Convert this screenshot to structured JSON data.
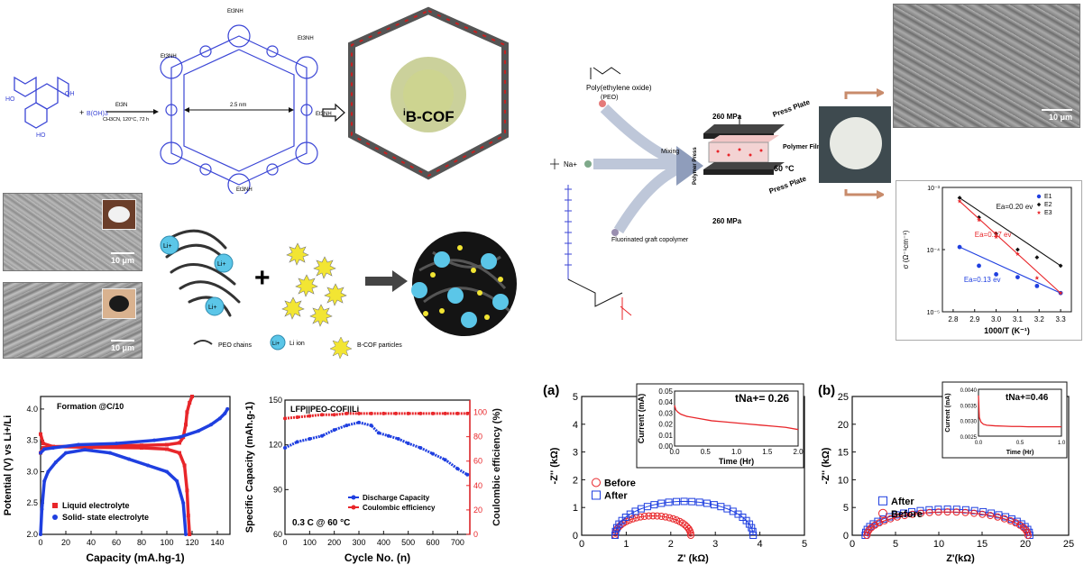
{
  "cof_scheme": {
    "reagent_top": "Et3N",
    "conditions": "CH3CN, 120°C, 72 h",
    "boronic_acid": "B(OH)3",
    "pore_size": "2.5 nm",
    "cation_label": "Et3NH",
    "cof_name": "B-COF",
    "cof_superscript": "i"
  },
  "sem_images": {
    "scale_top_right": "10 μm",
    "scale_left_top": "10 μm",
    "scale_left_bottom": "10 μm"
  },
  "legend_scheme": {
    "peo": "PEO chains",
    "li_ion": "Li ion",
    "cof_particles": "B-COF particles",
    "li_symbol": "Li+"
  },
  "fabrication": {
    "peo_name": "Poly(ethylene oxide)",
    "peo_abbr": "(PEO)",
    "graft_name": "Fluorinated graft copolymer",
    "mixing": "Mixing",
    "pressure_top": "260 MPa",
    "pressure_bottom": "260 MPa",
    "press_plate_top": "Press Plate",
    "press_plate_bottom": "Press Plate",
    "polymer_film": "Polymer Film",
    "temperature": "60 °C",
    "polymer_press": "Polymer Press",
    "sodium": "Na+"
  },
  "colors": {
    "red": "#e8262a",
    "blue": "#1f3fe0",
    "black": "#111111",
    "cof_blue": "#3b46d6",
    "li_blue": "#5bc6e8"
  },
  "chart_data": [
    {
      "id": "arrhenius",
      "type": "scatter",
      "xlabel": "1000/T (K⁻¹)",
      "ylabel": "σ (Ω⁻¹cm⁻¹)",
      "xlim": [
        2.75,
        3.35
      ],
      "ylog": true,
      "ylim": [
        1e-05,
        0.001
      ],
      "xticks": [
        2.8,
        2.9,
        3.0,
        3.1,
        3.2,
        3.3
      ],
      "yticks": [
        "10⁻⁵",
        "10⁻⁴",
        "10⁻³"
      ],
      "legend": "top-right",
      "series": [
        {
          "name": "E1",
          "marker": "circle",
          "color": "#1f3fe0",
          "x": [
            2.83,
            2.92,
            3.0,
            3.1,
            3.19,
            3.3
          ],
          "y": [
            0.00011,
            5.5e-05,
            4e-05,
            3.6e-05,
            2.6e-05,
            2e-05
          ]
        },
        {
          "name": "E2",
          "marker": "diamond",
          "color": "#111111",
          "x": [
            2.83,
            2.92,
            3.0,
            3.1,
            3.19,
            3.3
          ],
          "y": [
            0.00068,
            0.00033,
            0.00018,
            0.0001,
            7.5e-05,
            5.5e-05
          ]
        },
        {
          "name": "E3",
          "marker": "star",
          "color": "#e8262a",
          "x": [
            2.83,
            2.92,
            3.0,
            3.1,
            3.19,
            3.3
          ],
          "y": [
            0.0006,
            0.0003,
            0.00016,
            8.5e-05,
            3.5e-05,
            2e-05
          ]
        }
      ],
      "annotations": [
        "Ea=0.20 ev",
        "Ea=0.27 ev",
        "Ea=0.13 ev"
      ]
    },
    {
      "id": "charge_discharge",
      "type": "line",
      "title": "Formation @C/10",
      "xlabel": "Capacity (mA.hg-1)",
      "ylabel": "Potential (V) vs Li+/Li",
      "xlim": [
        0,
        150
      ],
      "ylim": [
        2.0,
        4.2
      ],
      "xticks": [
        0,
        20,
        40,
        60,
        80,
        100,
        120,
        140
      ],
      "yticks": [
        2.0,
        2.5,
        3.0,
        3.5,
        4.0
      ],
      "legend": "bottom-left",
      "series": [
        {
          "name": "Liquid electrolyte",
          "color": "#e8262a",
          "marker": "square",
          "charge": {
            "x": [
              0,
              2,
              10,
              40,
              80,
              100,
              110,
              113,
              115,
              116,
              118,
              120
            ],
            "y": [
              3.3,
              3.38,
              3.4,
              3.41,
              3.42,
              3.43,
              3.46,
              3.55,
              3.75,
              3.95,
              4.1,
              4.2
            ]
          },
          "discharge": {
            "x": [
              0,
              2,
              10,
              40,
              80,
              100,
              110,
              114,
              116,
              117,
              118
            ],
            "y": [
              3.6,
              3.45,
              3.4,
              3.39,
              3.38,
              3.36,
              3.3,
              3.1,
              2.7,
              2.3,
              2.0
            ]
          }
        },
        {
          "name": "Solid- state electrolyte",
          "color": "#1f3fe0",
          "marker": "circle",
          "charge": {
            "x": [
              0,
              3,
              10,
              30,
              60,
              90,
              110,
              125,
              135,
              142,
              146,
              148
            ],
            "y": [
              3.3,
              3.36,
              3.38,
              3.43,
              3.45,
              3.5,
              3.55,
              3.65,
              3.75,
              3.85,
              3.93,
              4.0
            ]
          },
          "discharge": {
            "x": [
              0,
              1,
              3,
              6,
              12,
              20,
              35,
              55,
              70,
              85,
              100,
              108,
              113,
              115
            ],
            "y": [
              2.0,
              2.4,
              2.85,
              3.0,
              3.15,
              3.3,
              3.35,
              3.3,
              3.2,
              3.1,
              3.0,
              2.85,
              2.5,
              2.0
            ]
          }
        }
      ]
    },
    {
      "id": "cycling",
      "type": "scatter",
      "title": "LFP||PEO-COF||Li",
      "subtitle": "0.3 C @ 60 °C",
      "xlabel": "Cycle No. (n)",
      "ylabel": "Specific Capacity (mAh.g-1)",
      "y2label": "Coulombic efficiency (%)",
      "xlim": [
        0,
        750
      ],
      "ylim": [
        60,
        150
      ],
      "y2lim": [
        0,
        110
      ],
      "xticks": [
        0,
        100,
        200,
        300,
        400,
        500,
        600,
        700
      ],
      "yticks": [
        60,
        90,
        120,
        150
      ],
      "y2ticks": [
        0,
        20,
        40,
        60,
        80,
        100
      ],
      "legend": "center-right",
      "series": [
        {
          "name": "Discharge Capacity",
          "axis": "left",
          "color": "#1f3fe0",
          "x": [
            0,
            50,
            100,
            150,
            200,
            250,
            300,
            350,
            380,
            420,
            460,
            500,
            550,
            600,
            650,
            700,
            740
          ],
          "y": [
            118,
            122,
            124,
            126,
            130,
            133,
            135,
            133,
            128,
            126,
            124,
            121,
            118,
            114,
            110,
            104,
            100
          ]
        },
        {
          "name": "Coulombic efficiency",
          "axis": "right",
          "color": "#e8262a",
          "x": [
            0,
            50,
            100,
            150,
            200,
            250,
            300,
            350,
            400,
            450,
            500,
            550,
            600,
            650,
            700,
            740
          ],
          "y": [
            95,
            96,
            97,
            98,
            98,
            99,
            99,
            99,
            99,
            99,
            99,
            99,
            99,
            99,
            99,
            99
          ]
        }
      ]
    },
    {
      "id": "eis_a",
      "type": "scatter",
      "panel_label": "(a)",
      "xlabel": "Z' (kΩ)",
      "ylabel": "-Z'' (kΩ)",
      "xlim": [
        0,
        5
      ],
      "ylim": [
        0,
        5
      ],
      "xticks": [
        0,
        1,
        2,
        3,
        4,
        5
      ],
      "yticks": [
        0,
        1,
        2,
        3,
        4,
        5
      ],
      "legend": "center-left",
      "series": [
        {
          "name": "Before",
          "marker": "open-circle",
          "color": "#e8262a",
          "center": 1.6,
          "radius": 0.85,
          "peak": 0.7
        },
        {
          "name": "After",
          "marker": "open-square",
          "color": "#1f3fe0",
          "center": 2.3,
          "radius": 1.55,
          "peak": 1.22
        }
      ],
      "inset": {
        "annotation": "tNa+= 0.26",
        "xlabel": "Time (Hr)",
        "ylabel": "Current (mA)",
        "xlim": [
          0,
          2.0
        ],
        "ylim": [
          0,
          0.05
        ],
        "xticks": [
          0.0,
          0.5,
          1.0,
          1.5,
          2.0
        ],
        "yticks": [
          0.0,
          0.01,
          0.02,
          0.03,
          0.04,
          0.05
        ],
        "x": [
          0,
          0.02,
          0.05,
          0.1,
          0.2,
          0.4,
          0.6,
          0.8,
          1.0,
          1.2,
          1.4,
          1.6,
          1.8,
          2.0
        ],
        "y": [
          0.037,
          0.033,
          0.031,
          0.029,
          0.027,
          0.025,
          0.023,
          0.022,
          0.021,
          0.02,
          0.019,
          0.018,
          0.017,
          0.015
        ]
      }
    },
    {
      "id": "eis_b",
      "type": "scatter",
      "panel_label": "(b)",
      "xlabel": "Z'(kΩ)",
      "ylabel": "-Z'' (kΩ)",
      "xlim": [
        0,
        25
      ],
      "ylim": [
        0,
        25
      ],
      "xticks": [
        0,
        5,
        10,
        15,
        20,
        25
      ],
      "yticks": [
        0,
        5,
        10,
        15,
        20,
        25
      ],
      "legend": "center-left",
      "series": [
        {
          "name": "After",
          "marker": "open-square",
          "color": "#1f3fe0",
          "center": 11,
          "radius": 9.5,
          "peak": 4.7
        },
        {
          "name": "Before",
          "marker": "open-circle",
          "color": "#e8262a",
          "center": 11,
          "radius": 9.3,
          "peak": 4.2
        }
      ],
      "inset": {
        "annotation": "tNa+=0.46",
        "xlabel": "Time (Hr)",
        "ylabel": "Current (mA)",
        "xlim": [
          0,
          1.0
        ],
        "ylim": [
          0.0025,
          0.004
        ],
        "xticks": [
          0.0,
          0.5,
          1.0
        ],
        "yticks": [
          0.0025,
          0.003,
          0.0035,
          0.004
        ],
        "x": [
          0,
          0.01,
          0.03,
          0.06,
          0.1,
          0.2,
          0.3,
          0.4,
          0.5,
          0.6,
          0.7,
          0.8,
          0.9,
          1.0
        ],
        "y": [
          0.0038,
          0.0031,
          0.00295,
          0.00288,
          0.00285,
          0.00283,
          0.00282,
          0.00281,
          0.00281,
          0.0028,
          0.0028,
          0.0028,
          0.0028,
          0.0028
        ]
      }
    }
  ]
}
